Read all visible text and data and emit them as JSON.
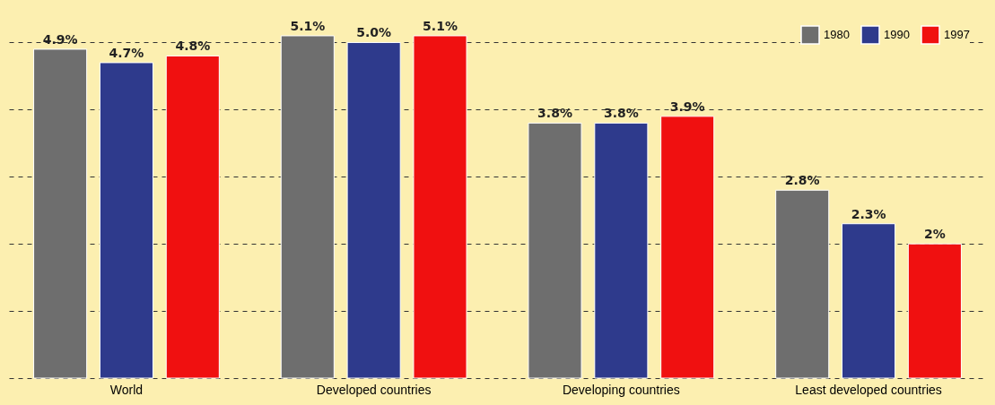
{
  "chart_data": {
    "type": "bar",
    "categories": [
      "World",
      "Developed countries",
      "Developing countries",
      "Least developed countries"
    ],
    "series": [
      {
        "name": "1980",
        "color": "#6e6e6e",
        "values": [
          4.9,
          5.1,
          3.8,
          2.8
        ],
        "value_labels": [
          "4.9%",
          "5.1%",
          "3.8%",
          "2.8%"
        ]
      },
      {
        "name": "1990",
        "color": "#2e3a8c",
        "values": [
          4.7,
          5.0,
          3.8,
          2.3
        ],
        "value_labels": [
          "4.7%",
          "5.0%",
          "3.8%",
          "2.3%"
        ]
      },
      {
        "name": "1997",
        "color": "#f01010",
        "values": [
          4.8,
          5.1,
          3.9,
          2.0
        ],
        "value_labels": [
          "4.8%",
          "5.1%",
          "3.9%",
          "2%"
        ]
      }
    ],
    "yticks": [
      {
        "value": 0,
        "label": null
      },
      {
        "value": 1,
        "label": null
      },
      {
        "value": 2,
        "label": null
      },
      {
        "value": 3,
        "label": null
      },
      {
        "value": 4,
        "label": null
      },
      {
        "value": 5,
        "label": null
      }
    ],
    "grid": "y",
    "legend": "top right",
    "tick_labels": "x"
  }
}
